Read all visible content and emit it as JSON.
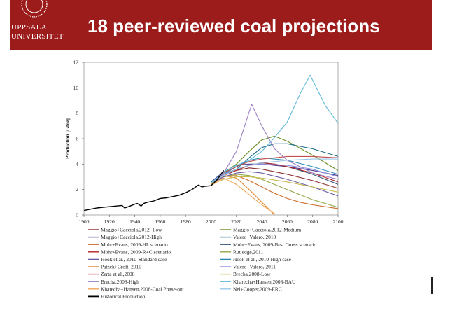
{
  "header": {
    "university_line1": "UPPSALA",
    "university_line2": "UNIVERSITET",
    "title": "18 peer-reviewed coal projections",
    "bg_color": "#9c1b1b"
  },
  "chart_data": {
    "type": "line",
    "ylabel": "Production [Gtoe]",
    "xlabel": "",
    "xlim": [
      1900,
      2100
    ],
    "ylim": [
      0,
      12
    ],
    "x_ticks": [
      1900,
      1920,
      1940,
      1960,
      1980,
      2000,
      2020,
      2040,
      2060,
      2080,
      2100
    ],
    "y_ticks": [
      0,
      2,
      4,
      6,
      8,
      10,
      12
    ],
    "grid": false,
    "legend_position": "bottom",
    "series": [
      {
        "name": "Maggio+Cacciola,2012- Low",
        "color": "#8b2e2e",
        "x": [
          2000,
          2010,
          2020,
          2030,
          2040,
          2060,
          2080,
          2100
        ],
        "y": [
          2.6,
          3.1,
          3.5,
          3.7,
          3.6,
          3.2,
          2.7,
          2.1
        ]
      },
      {
        "name": "Maggio+Cacciola,2012-Medium",
        "color": "#6b8e23",
        "x": [
          2000,
          2010,
          2020,
          2030,
          2040,
          2050,
          2060,
          2080,
          2100
        ],
        "y": [
          2.5,
          3.3,
          4.0,
          5.0,
          5.9,
          6.2,
          5.8,
          4.7,
          3.5
        ]
      },
      {
        "name": "Maggio+Cacciola,2012-High",
        "color": "#4b3c8e",
        "x": [
          2000,
          2010,
          2020,
          2030,
          2040,
          2060,
          2080,
          2100
        ],
        "y": [
          2.6,
          3.4,
          3.9,
          4.0,
          4.0,
          3.8,
          3.5,
          3.1
        ]
      },
      {
        "name": "Valero+Valero, 2010",
        "color": "#1f6f8b",
        "x": [
          2000,
          2010,
          2020,
          2030,
          2040,
          2050,
          2060,
          2080,
          2100
        ],
        "y": [
          2.6,
          3.1,
          3.6,
          4.5,
          5.3,
          5.6,
          5.6,
          5.2,
          4.6
        ]
      },
      {
        "name": "Mohr+Evans, 2009-HL scenario",
        "color": "#c96b28",
        "x": [
          2000,
          2010,
          2020,
          2030,
          2040,
          2050,
          2060,
          2070,
          2080,
          2100
        ],
        "y": [
          2.4,
          3.0,
          3.1,
          2.7,
          2.2,
          1.7,
          1.3,
          1.0,
          0.8,
          0.5
        ]
      },
      {
        "name": "Mohr+Evans, 2009-Best Guess scenario",
        "color": "#34557a",
        "x": [
          2000,
          2010,
          2020,
          2030,
          2040,
          2050,
          2060,
          2080,
          2100
        ],
        "y": [
          2.5,
          3.2,
          3.6,
          3.9,
          4.1,
          4.0,
          3.8,
          3.2,
          2.4
        ]
      },
      {
        "name": "Mohr+Evans, 2009-R+C scenario",
        "color": "#b22222",
        "x": [
          2000,
          2010,
          2020,
          2030,
          2040,
          2050,
          2060,
          2080,
          2100
        ],
        "y": [
          2.5,
          3.1,
          3.5,
          3.9,
          4.1,
          4.0,
          3.8,
          3.3,
          2.6
        ]
      },
      {
        "name": "Rutledge,2011",
        "color": "#93a84a",
        "x": [
          2000,
          2010,
          2020,
          2030,
          2040,
          2060,
          2080,
          2100
        ],
        "y": [
          2.5,
          3.0,
          3.2,
          3.1,
          2.8,
          2.0,
          1.2,
          0.6
        ]
      },
      {
        "name": "Hook et al., 2010-Standard case",
        "color": "#6b5ba3",
        "x": [
          2000,
          2010,
          2020,
          2030,
          2040,
          2060,
          2080,
          2100
        ],
        "y": [
          2.4,
          3.0,
          3.3,
          3.4,
          3.3,
          2.8,
          2.2,
          1.5
        ]
      },
      {
        "name": "Hook et al., 2010-High case",
        "color": "#2a8bb5",
        "x": [
          2000,
          2010,
          2020,
          2030,
          2040,
          2060,
          2080,
          2100
        ],
        "y": [
          2.5,
          3.2,
          3.8,
          4.3,
          4.5,
          4.3,
          3.8,
          3.2
        ]
      },
      {
        "name": "Patzek+Croft, 2010",
        "color": "#e0892e",
        "x": [
          2000,
          2010,
          2020,
          2030,
          2040,
          2050
        ],
        "y": [
          2.4,
          3.1,
          2.9,
          2.0,
          1.0,
          0.0
        ]
      },
      {
        "name": "Valero+Valero, 2011",
        "color": "#8e8ee0",
        "x": [
          2000,
          2010,
          2020,
          2030,
          2040,
          2060,
          2080,
          2100
        ],
        "y": [
          2.5,
          3.2,
          3.6,
          3.9,
          4.0,
          3.9,
          3.6,
          3.0
        ]
      },
      {
        "name": "Zerta et al.,2008",
        "color": "#c0504d",
        "x": [
          2000,
          2010,
          2020,
          2030,
          2040,
          2060,
          2080,
          2100
        ],
        "y": [
          2.5,
          3.3,
          3.8,
          4.2,
          4.4,
          4.6,
          4.6,
          4.5
        ]
      },
      {
        "name": "Brecha,2008-Low",
        "color": "#c9b94a",
        "x": [
          2000,
          2010,
          2020,
          2030,
          2040,
          2060,
          2080,
          2100
        ],
        "y": [
          2.4,
          2.8,
          3.0,
          3.0,
          2.9,
          2.6,
          2.2,
          1.8
        ]
      },
      {
        "name": "Brecha,2008-High",
        "color": "#9b7fc4",
        "x": [
          2000,
          2010,
          2020,
          2032,
          2040,
          2050,
          2060,
          2080,
          2100
        ],
        "y": [
          2.5,
          3.3,
          5.0,
          8.7,
          7.0,
          5.2,
          4.3,
          3.3,
          2.8
        ]
      },
      {
        "name": "Kharecha+Hansen,2008-BAU",
        "color": "#5fb8d8",
        "x": [
          2000,
          2010,
          2020,
          2030,
          2040,
          2050,
          2060,
          2070,
          2078,
          2090,
          2100
        ],
        "y": [
          2.5,
          3.4,
          3.9,
          4.3,
          5.0,
          6.1,
          7.3,
          9.5,
          11.0,
          8.6,
          7.2
        ]
      },
      {
        "name": "Kharecha+Hansen,2008-Coal Phase-out",
        "color": "#f0a65a",
        "x": [
          2000,
          2010,
          2020,
          2030,
          2040,
          2050
        ],
        "y": [
          2.3,
          2.9,
          2.4,
          1.6,
          0.8,
          0.1
        ]
      },
      {
        "name": "Nel+Cooper,2009-ERC",
        "color": "#9bc8e8",
        "x": [
          2000,
          2010,
          2020,
          2030,
          2040,
          2060,
          2080,
          2100
        ],
        "y": [
          2.5,
          3.1,
          3.6,
          3.9,
          4.1,
          4.3,
          4.4,
          4.4
        ]
      },
      {
        "name": "Historical Production",
        "color": "#000000",
        "x": [
          1900,
          1905,
          1910,
          1915,
          1920,
          1925,
          1930,
          1932,
          1935,
          1940,
          1942,
          1945,
          1947,
          1950,
          1955,
          1960,
          1965,
          1970,
          1975,
          1980,
          1985,
          1990,
          1993,
          1995,
          2000,
          2005,
          2010
        ],
        "y": [
          0.35,
          0.45,
          0.55,
          0.6,
          0.65,
          0.7,
          0.75,
          0.55,
          0.65,
          0.85,
          0.9,
          0.7,
          0.9,
          1.0,
          1.1,
          1.3,
          1.35,
          1.45,
          1.55,
          1.75,
          2.0,
          2.35,
          2.2,
          2.25,
          2.3,
          2.8,
          3.5
        ]
      }
    ]
  }
}
